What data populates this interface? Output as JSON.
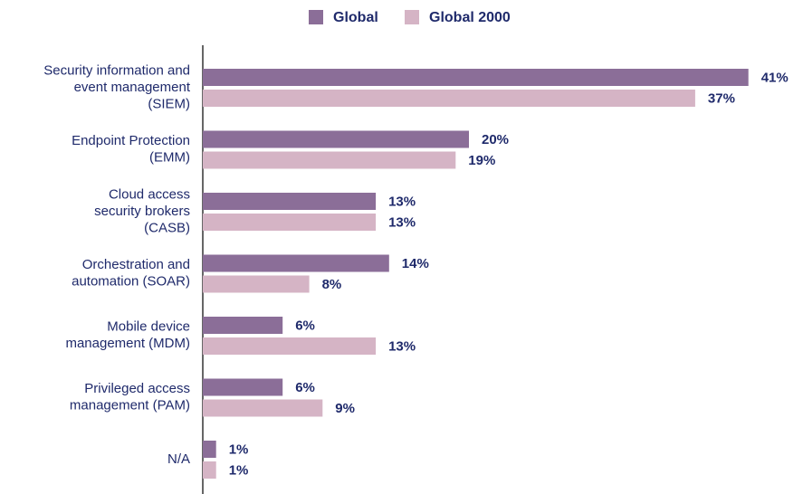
{
  "chart_data": {
    "type": "bar",
    "orientation": "horizontal",
    "categories": [
      [
        "Security information and",
        "event management",
        "(SIEM)"
      ],
      [
        "Endpoint Protection",
        "(EMM)"
      ],
      [
        "Cloud access",
        "security brokers",
        "(CASB)"
      ],
      [
        "Orchestration and",
        "automation (SOAR)"
      ],
      [
        "Mobile device",
        "management (MDM)"
      ],
      [
        "Privileged access",
        "management (PAM)"
      ],
      [
        "N/A"
      ]
    ],
    "series": [
      {
        "name": "Global",
        "color": "#8b6e98",
        "values": [
          41,
          20,
          13,
          14,
          6,
          6,
          1
        ],
        "value_labels": [
          "41%",
          "20%",
          "13%",
          "14%",
          "6%",
          "6%",
          "1%"
        ]
      },
      {
        "name": "Global 2000",
        "color": "#d5b4c5",
        "values": [
          37,
          19,
          13,
          8,
          13,
          9,
          1
        ],
        "value_labels": [
          "37%",
          "19%",
          "13%",
          "8%",
          "13%",
          "9%",
          "1%"
        ]
      }
    ],
    "legend": "top"
  }
}
